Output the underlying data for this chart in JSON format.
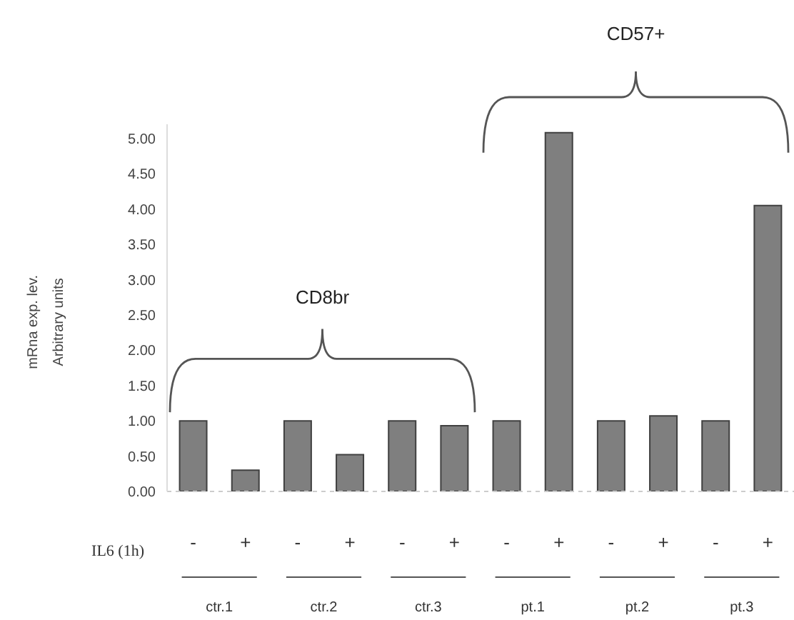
{
  "chart_data": {
    "type": "bar",
    "categories": [
      "-",
      "+",
      "-",
      "+",
      "-",
      "+",
      "-",
      "+",
      "-",
      "+",
      "-",
      "+"
    ],
    "values": [
      1.0,
      0.3,
      1.0,
      0.52,
      1.0,
      0.93,
      1.0,
      5.08,
      1.0,
      1.07,
      1.0,
      4.05
    ],
    "color": "#7f7f7f",
    "ylabel": "mRna exp. lev.\nArbitrary units",
    "xlabel": "IL6 (1h)",
    "ylim": [
      0,
      5.2
    ],
    "yticks": [
      {
        "value": 0,
        "label": "0.00"
      },
      {
        "value": 0.5,
        "label": "0.50"
      },
      {
        "value": 1,
        "label": "1.00"
      },
      {
        "value": 1.5,
        "label": "1.50"
      },
      {
        "value": 2,
        "label": "2.00"
      },
      {
        "value": 2.5,
        "label": "2.50"
      },
      {
        "value": 3,
        "label": "3.00"
      },
      {
        "value": 3.5,
        "label": "3.50"
      },
      {
        "value": 4,
        "label": "4.00"
      },
      {
        "value": 4.5,
        "label": "4.50"
      },
      {
        "value": 5,
        "label": "5.00"
      }
    ],
    "grid": false,
    "annotations": [
      "CD8br",
      "CD57+",
      "ctr.1",
      "ctr.2",
      "ctr.3",
      "pt.1",
      "pt.2",
      "pt.3"
    ]
  }
}
